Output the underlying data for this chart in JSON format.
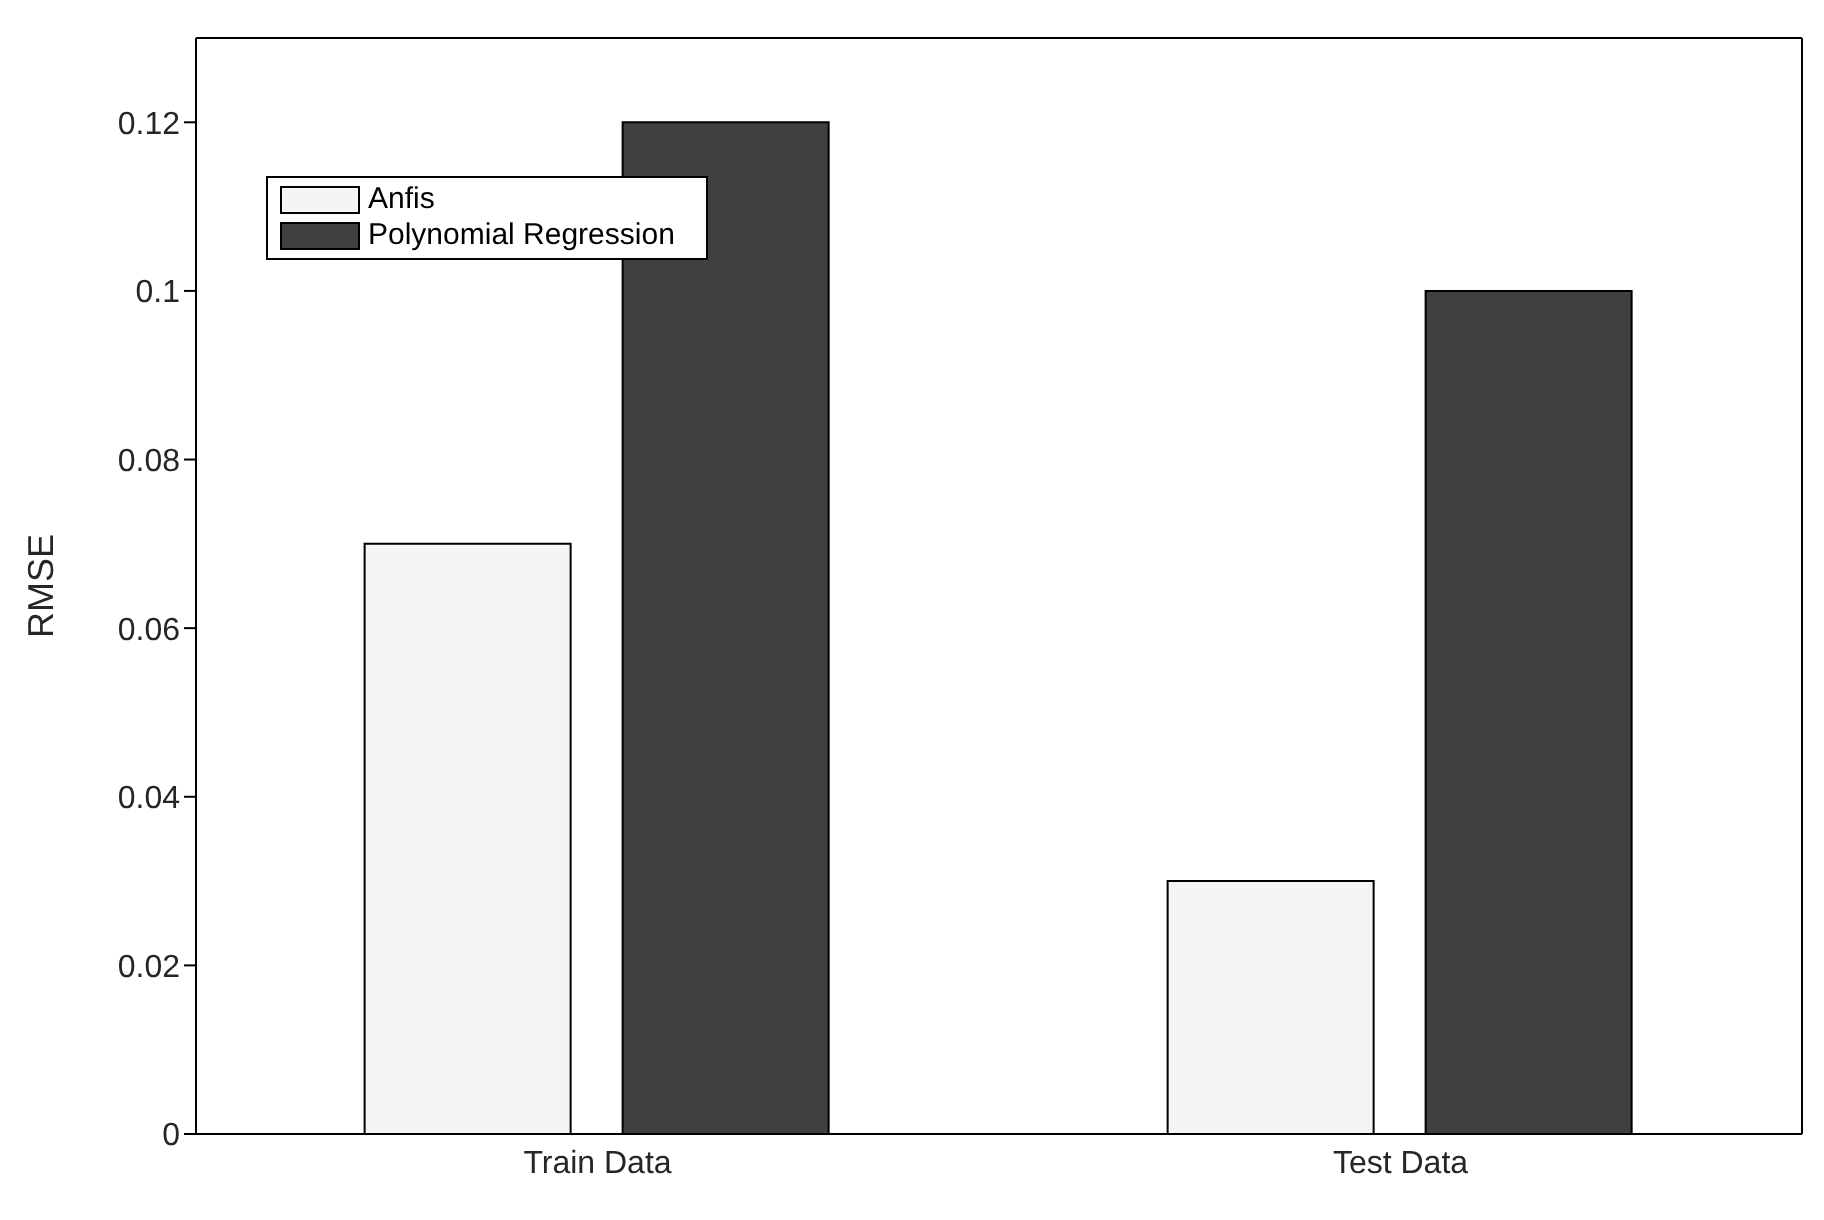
{
  "chart_data": {
    "type": "bar",
    "ylabel": "RMSE",
    "categories": [
      "Train Data",
      "Test Data"
    ],
    "series": [
      {
        "name": "Anfis",
        "color": "#f5f5f5",
        "values": [
          0.07,
          0.03
        ]
      },
      {
        "name": "Polynomial Regression",
        "color": "#404040",
        "values": [
          0.12,
          0.1
        ]
      }
    ],
    "ylim": [
      0,
      0.13
    ],
    "yticks": [
      0,
      0.02,
      0.04,
      0.06,
      0.08,
      0.1,
      0.12
    ],
    "grid": false,
    "legend": "top left"
  }
}
